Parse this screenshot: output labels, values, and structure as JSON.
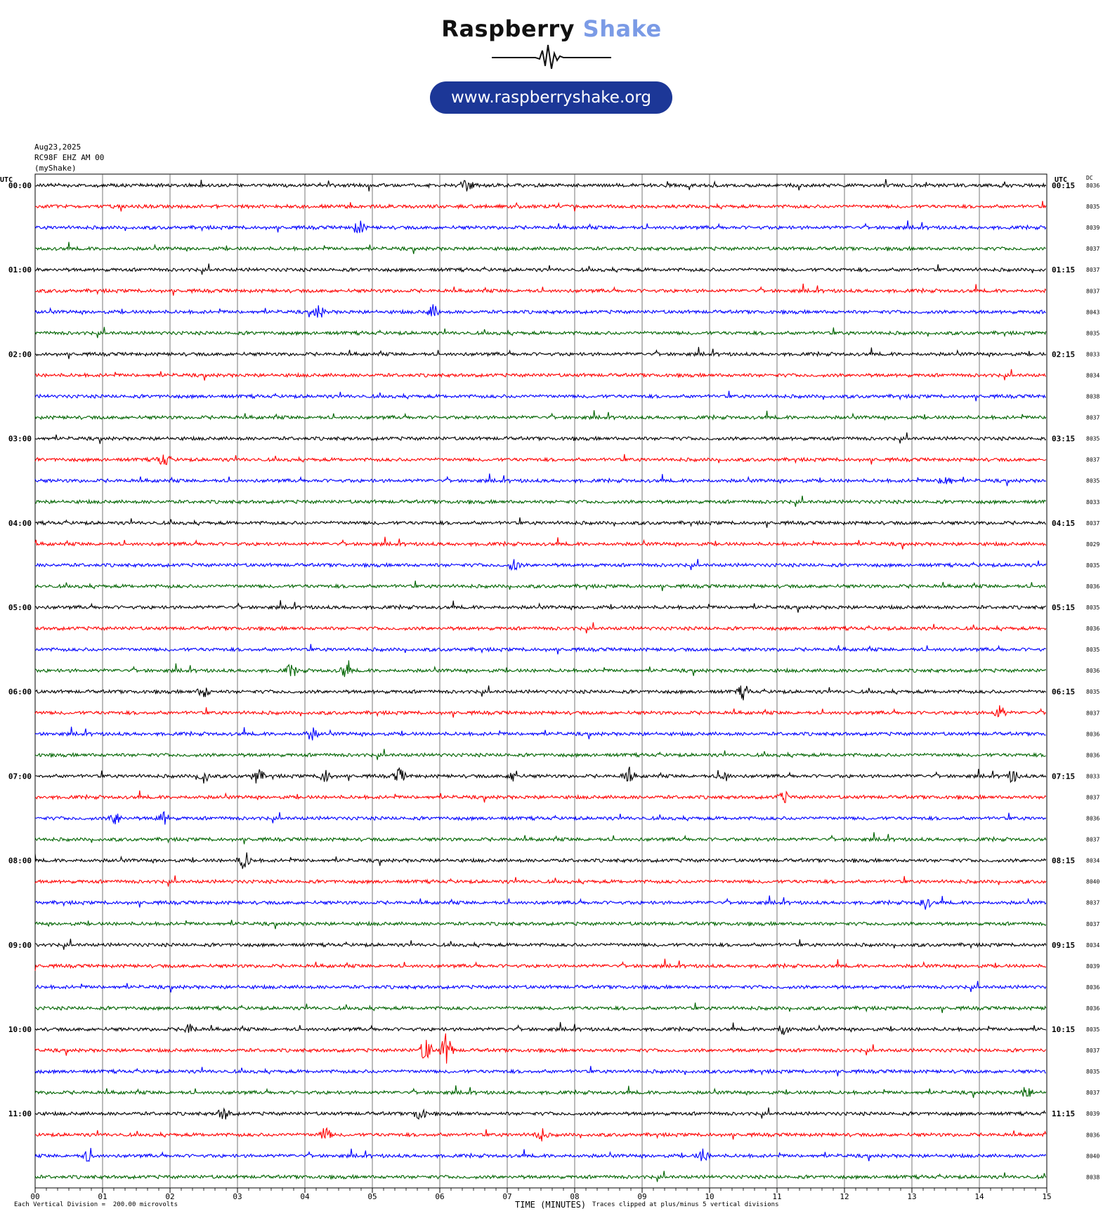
{
  "brand": {
    "name_part1": "Raspberry",
    "name_part2": "Shake",
    "url": "www.raspberryshake.org",
    "accent_color": "#7b9be6",
    "url_bg_color": "#1c3797"
  },
  "header": {
    "date": "Aug23,2025",
    "station": "RC98F EHZ AM 00",
    "network": "(myShake)"
  },
  "footer": {
    "left_note": "Each Vertical Division =  200.00 microvolts",
    "right_note": "Traces clipped at plus/minus 5 vertical divisions",
    "axis_title": "TIME (MINUTES)"
  },
  "chart_data": {
    "type": "line",
    "title": "",
    "xlabel": "TIME (MINUTES)",
    "left_axis_label": "UTC",
    "right_axis_label": "UTC",
    "dc_label": "DC",
    "xlim": [
      0,
      15
    ],
    "x_ticks": [
      "00",
      "01",
      "02",
      "03",
      "04",
      "05",
      "06",
      "07",
      "08",
      "09",
      "10",
      "11",
      "12",
      "13",
      "14",
      "15"
    ],
    "trace_colors": [
      "#000000",
      "#ff0000",
      "#0000ff",
      "#006400"
    ],
    "grid": true,
    "left_time_labels": [
      "00:00",
      "01:00",
      "02:00",
      "03:00",
      "04:00",
      "05:00",
      "06:00",
      "07:00",
      "08:00",
      "09:00",
      "10:00",
      "11:00"
    ],
    "right_time_labels": [
      "00:15",
      "01:15",
      "02:15",
      "03:15",
      "04:15",
      "05:15",
      "06:15",
      "07:15",
      "08:15",
      "09:15",
      "10:15",
      "11:15"
    ],
    "dc_offsets": [
      "8036",
      "8035",
      "8039",
      "8037",
      "8037",
      "8037",
      "8043",
      "8035",
      "8033",
      "8034",
      "8038",
      "8037",
      "8035",
      "8037",
      "8035",
      "8033",
      "8037",
      "8029",
      "8035",
      "8036",
      "8035",
      "8036",
      "8035",
      "8036",
      "8035",
      "8037",
      "8036",
      "8036",
      "8033",
      "8037",
      "8036",
      "8037",
      "8034",
      "8040",
      "8037",
      "8037",
      "8034",
      "8039",
      "8036",
      "8036",
      "8035",
      "8037",
      "8035",
      "8037",
      "8039",
      "8036",
      "8040",
      "8038"
    ],
    "trace_count": 48,
    "minutes_per_trace": 15,
    "events": [
      {
        "trace": 0,
        "minute": 6.4,
        "amp": 0.45
      },
      {
        "trace": 2,
        "minute": 4.8,
        "amp": 0.5
      },
      {
        "trace": 6,
        "minute": 4.2,
        "amp": 0.5
      },
      {
        "trace": 6,
        "minute": 5.9,
        "amp": 0.45
      },
      {
        "trace": 13,
        "minute": 1.9,
        "amp": 0.45
      },
      {
        "trace": 14,
        "minute": 13.5,
        "amp": 0.55
      },
      {
        "trace": 18,
        "minute": 7.1,
        "amp": 0.4
      },
      {
        "trace": 23,
        "minute": 3.8,
        "amp": 0.45
      },
      {
        "trace": 23,
        "minute": 4.6,
        "amp": 0.45
      },
      {
        "trace": 24,
        "minute": 10.5,
        "amp": 0.5
      },
      {
        "trace": 24,
        "minute": 2.5,
        "amp": 0.4
      },
      {
        "trace": 25,
        "minute": 14.3,
        "amp": 0.45
      },
      {
        "trace": 26,
        "minute": 4.1,
        "amp": 0.45
      },
      {
        "trace": 28,
        "minute": 2.5,
        "amp": 0.45
      },
      {
        "trace": 28,
        "minute": 3.3,
        "amp": 0.55
      },
      {
        "trace": 28,
        "minute": 4.3,
        "amp": 0.5
      },
      {
        "trace": 28,
        "minute": 5.4,
        "amp": 0.5
      },
      {
        "trace": 28,
        "minute": 7.1,
        "amp": 0.45
      },
      {
        "trace": 28,
        "minute": 8.8,
        "amp": 0.5
      },
      {
        "trace": 28,
        "minute": 10.2,
        "amp": 0.45
      },
      {
        "trace": 28,
        "minute": 14.5,
        "amp": 0.45
      },
      {
        "trace": 29,
        "minute": 11.1,
        "amp": 0.4
      },
      {
        "trace": 30,
        "minute": 1.2,
        "amp": 0.45
      },
      {
        "trace": 30,
        "minute": 1.9,
        "amp": 0.45
      },
      {
        "trace": 32,
        "minute": 3.1,
        "amp": 0.7
      },
      {
        "trace": 34,
        "minute": 13.2,
        "amp": 0.4
      },
      {
        "trace": 40,
        "minute": 2.3,
        "amp": 0.4
      },
      {
        "trace": 40,
        "minute": 11.1,
        "amp": 0.45
      },
      {
        "trace": 41,
        "minute": 5.8,
        "amp": 0.9
      },
      {
        "trace": 41,
        "minute": 6.1,
        "amp": 1.2
      },
      {
        "trace": 43,
        "minute": 14.7,
        "amp": 0.45
      },
      {
        "trace": 44,
        "minute": 2.8,
        "amp": 0.45
      },
      {
        "trace": 44,
        "minute": 5.7,
        "amp": 0.45
      },
      {
        "trace": 45,
        "minute": 4.3,
        "amp": 0.5
      },
      {
        "trace": 45,
        "minute": 7.5,
        "amp": 0.45
      },
      {
        "trace": 46,
        "minute": 0.8,
        "amp": 0.45
      },
      {
        "trace": 46,
        "minute": 9.9,
        "amp": 0.45
      }
    ]
  }
}
